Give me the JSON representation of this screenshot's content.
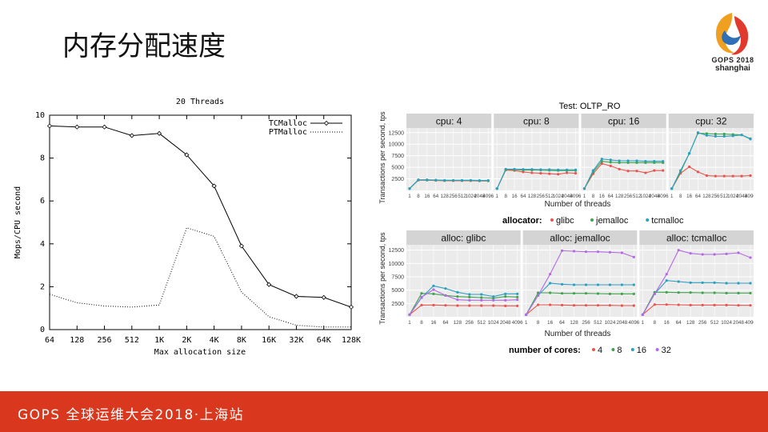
{
  "slide": {
    "title": "内存分配速度",
    "footer": "GOPS 全球运维大会2018·上海站",
    "logo": {
      "brand": "GOPS",
      "year": "2018",
      "city": "shanghai"
    }
  },
  "colors": {
    "footer": "#d9381e",
    "glibc": "#e8554e",
    "jemalloc": "#3fa34d",
    "tcmalloc": "#2b9fc0",
    "cores32": "#b36ae2"
  },
  "chart_data": [
    {
      "type": "line",
      "title": "20 Threads",
      "xlabel": "Max allocation size",
      "ylabel": "Mops/CPU second",
      "categories": [
        "64",
        "128",
        "256",
        "512",
        "1K",
        "2K",
        "4K",
        "8K",
        "16K",
        "32K",
        "64K",
        "128K"
      ],
      "ylim": [
        0,
        10
      ],
      "yticks": [
        0,
        2,
        4,
        6,
        8,
        10
      ],
      "legend": "top-right",
      "series": [
        {
          "name": "TCMalloc",
          "style": "solid",
          "values": [
            9.5,
            9.45,
            9.45,
            9.05,
            9.15,
            8.15,
            6.7,
            3.9,
            2.1,
            1.55,
            1.5,
            1.05
          ]
        },
        {
          "name": "PTMalloc",
          "style": "dotted",
          "values": [
            1.65,
            1.25,
            1.1,
            1.05,
            1.15,
            4.75,
            4.35,
            1.75,
            0.6,
            0.2,
            0.12,
            0.12
          ]
        }
      ]
    },
    {
      "type": "line",
      "title": "Test:  OLTP_RO",
      "ylabel": "Transactions per second, tps",
      "xlabel": "Number of threads",
      "x": [
        "1",
        "8",
        "16",
        "64",
        "128",
        "256",
        "512",
        "1024",
        "2048",
        "4096"
      ],
      "yticks": [
        2500,
        5000,
        7500,
        10000,
        12500
      ],
      "ylim": [
        0,
        13500
      ],
      "legend": {
        "title": "allocator:",
        "items": [
          "glibc",
          "jemalloc",
          "tcmalloc"
        ]
      },
      "panels": [
        {
          "label": "cpu: 4",
          "series": [
            {
              "name": "glibc",
              "values": [
                400,
                2200,
                2200,
                2150,
                2100,
                2100,
                2100,
                2100,
                2050,
                2050
              ]
            },
            {
              "name": "jemalloc",
              "values": [
                400,
                2250,
                2250,
                2200,
                2150,
                2150,
                2150,
                2150,
                2100,
                2100
              ]
            },
            {
              "name": "tcmalloc",
              "values": [
                400,
                2300,
                2300,
                2250,
                2200,
                2200,
                2200,
                2200,
                2150,
                2150
              ]
            }
          ]
        },
        {
          "label": "cpu: 8",
          "series": [
            {
              "name": "glibc",
              "values": [
                400,
                4400,
                4300,
                4000,
                3800,
                3700,
                3600,
                3500,
                3800,
                3700
              ]
            },
            {
              "name": "jemalloc",
              "values": [
                400,
                4500,
                4500,
                4400,
                4400,
                4400,
                4350,
                4300,
                4300,
                4300
              ]
            },
            {
              "name": "tcmalloc",
              "values": [
                400,
                4600,
                4600,
                4550,
                4550,
                4500,
                4500,
                4450,
                4450,
                4450
              ]
            }
          ]
        },
        {
          "label": "cpu: 16",
          "series": [
            {
              "name": "glibc",
              "values": [
                400,
                3600,
                5800,
                5300,
                4600,
                4200,
                4200,
                3800,
                4300,
                4300
              ]
            },
            {
              "name": "jemalloc",
              "values": [
                400,
                4000,
                6300,
                6100,
                6000,
                6000,
                6000,
                6000,
                6000,
                6000
              ]
            },
            {
              "name": "tcmalloc",
              "values": [
                400,
                4300,
                6800,
                6600,
                6400,
                6400,
                6400,
                6300,
                6300,
                6300
              ]
            }
          ]
        },
        {
          "label": "cpu: 32",
          "series": [
            {
              "name": "glibc",
              "values": [
                400,
                3700,
                5100,
                4000,
                3200,
                3100,
                3100,
                3100,
                3100,
                3200
              ]
            },
            {
              "name": "jemalloc",
              "values": [
                400,
                4000,
                8000,
                12400,
                12300,
                12200,
                12200,
                12100,
                12000,
                11200
              ]
            },
            {
              "name": "tcmalloc",
              "values": [
                400,
                4300,
                8000,
                12500,
                11900,
                11700,
                11700,
                11800,
                12000,
                11100
              ]
            }
          ]
        }
      ]
    },
    {
      "type": "line",
      "ylabel": "Transactions per second, tps",
      "xlabel": "Number of threads",
      "x": [
        "1",
        "8",
        "16",
        "64",
        "128",
        "256",
        "512",
        "1024",
        "2048",
        "4096"
      ],
      "yticks": [
        2500,
        5000,
        7500,
        10000,
        12500
      ],
      "ylim": [
        0,
        13500
      ],
      "legend": {
        "title": "number of cores:",
        "items": [
          "4",
          "8",
          "16",
          "32"
        ]
      },
      "panels": [
        {
          "label": "alloc: glibc",
          "series": [
            {
              "name": "4",
              "values": [
                400,
                2200,
                2200,
                2150,
                2100,
                2100,
                2100,
                2100,
                2050,
                2050
              ]
            },
            {
              "name": "8",
              "values": [
                400,
                4400,
                4300,
                4000,
                3800,
                3700,
                3600,
                3500,
                3800,
                3700
              ]
            },
            {
              "name": "16",
              "values": [
                400,
                3600,
                5800,
                5300,
                4600,
                4200,
                4200,
                3800,
                4300,
                4300
              ]
            },
            {
              "name": "32",
              "values": [
                400,
                3700,
                5100,
                4000,
                3200,
                3100,
                3100,
                3100,
                3100,
                3200
              ]
            }
          ]
        },
        {
          "label": "alloc: jemalloc",
          "series": [
            {
              "name": "4",
              "values": [
                400,
                2250,
                2250,
                2200,
                2150,
                2150,
                2150,
                2150,
                2100,
                2100
              ]
            },
            {
              "name": "8",
              "values": [
                400,
                4500,
                4500,
                4400,
                4400,
                4400,
                4350,
                4300,
                4300,
                4300
              ]
            },
            {
              "name": "16",
              "values": [
                400,
                4000,
                6300,
                6100,
                6000,
                6000,
                6000,
                6000,
                6000,
                6000
              ]
            },
            {
              "name": "32",
              "values": [
                400,
                4000,
                8000,
                12400,
                12300,
                12200,
                12200,
                12100,
                12000,
                11200
              ]
            }
          ]
        },
        {
          "label": "alloc: tcmalloc",
          "series": [
            {
              "name": "4",
              "values": [
                400,
                2300,
                2300,
                2250,
                2200,
                2200,
                2200,
                2200,
                2150,
                2150
              ]
            },
            {
              "name": "8",
              "values": [
                400,
                4600,
                4600,
                4550,
                4550,
                4500,
                4500,
                4450,
                4450,
                4450
              ]
            },
            {
              "name": "16",
              "values": [
                400,
                4300,
                6800,
                6600,
                6400,
                6400,
                6400,
                6300,
                6300,
                6300
              ]
            },
            {
              "name": "32",
              "values": [
                400,
                4300,
                8000,
                12500,
                11900,
                11700,
                11700,
                11800,
                12000,
                11100
              ]
            }
          ]
        }
      ]
    }
  ]
}
